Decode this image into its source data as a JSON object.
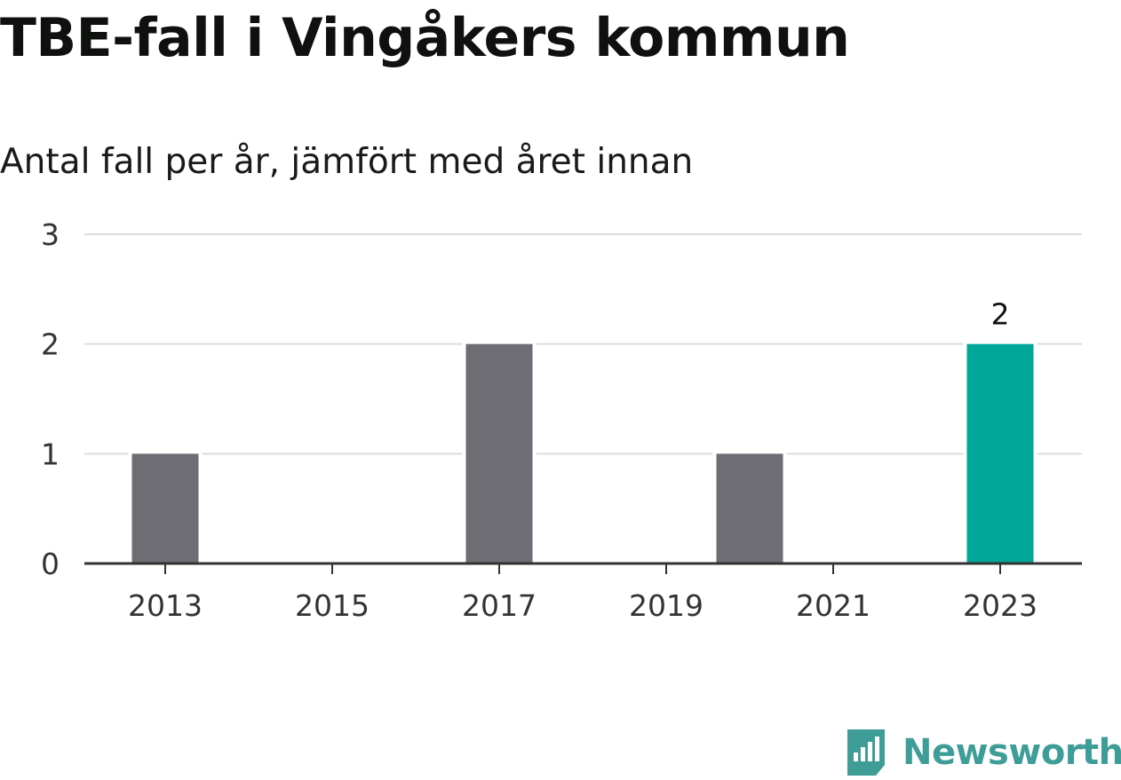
{
  "title": "TBE-fall i Vingåkers kommun",
  "subtitle": "Antal fall per år, jämfört med året innan",
  "brand": {
    "name": "Newsworthy",
    "icon": "newsworthy-logo-icon",
    "color": "#3f9d98"
  },
  "chart_data": {
    "type": "bar",
    "title": "TBE-fall i Vingåkers kommun",
    "subtitle": "Antal fall per år, jämfört med året innan",
    "categories": [
      "2013",
      "2014",
      "2015",
      "2016",
      "2017",
      "2018",
      "2019",
      "2020",
      "2021",
      "2022",
      "2023"
    ],
    "values": [
      1,
      0,
      0,
      0,
      2,
      0,
      0,
      1,
      0,
      0,
      2
    ],
    "x_tick_labels": [
      "2013",
      "2015",
      "2017",
      "2019",
      "2021",
      "2023"
    ],
    "y_ticks": [
      0,
      1,
      2,
      3
    ],
    "ylim": [
      0,
      3
    ],
    "xlabel": "",
    "ylabel": "",
    "grid": true,
    "highlight": {
      "category": "2023",
      "label": "2"
    },
    "colors": {
      "bar": "#6e6d74",
      "highlight": "#00a697",
      "grid": "#dddddd",
      "axis": "#333333"
    }
  }
}
